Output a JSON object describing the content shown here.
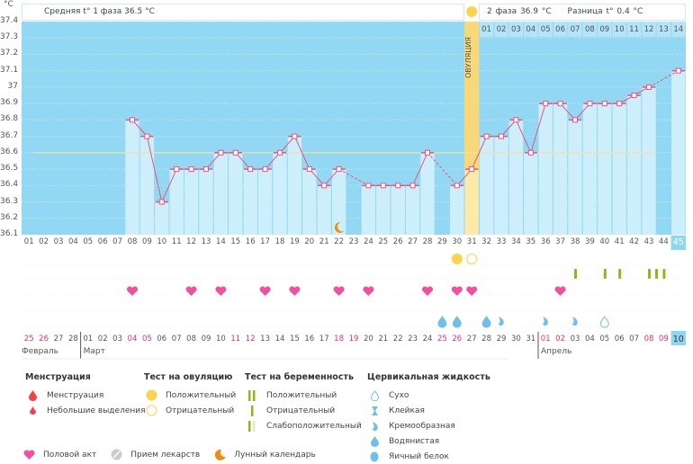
{
  "unit_label": "°C",
  "header": {
    "phase1": "Средняя t° 1 фаза 36.5 °C",
    "phase2": "2 фаза 36.9 °C",
    "difference": "Разница t° 0.4 °C",
    "ovulation_label": "ОВУЛЯЦИЯ"
  },
  "colors": {
    "plot_bg": "#92d7f3",
    "bar": "#cdeefb",
    "line": "#e8557a",
    "avg": "#f3e49a",
    "ovulation": "#fde9a8",
    "weekend": "#e8306a",
    "heart": "#f2509c",
    "preg": "#8cb81c",
    "fluid": "#6fbfe8",
    "sun": "#fcd34d",
    "moon": "#f08c10"
  },
  "chart_data": {
    "type": "line",
    "ylim": [
      36.1,
      37.4
    ],
    "y_ticks": [
      "36.1",
      "36.2",
      "36.3",
      "36.4",
      "36.5",
      "36.6",
      "36.7",
      "36.8",
      "36.9",
      "37",
      "37.1",
      "37.2",
      "37.3",
      "37.4"
    ],
    "cycle_days": [
      "01",
      "02",
      "03",
      "04",
      "05",
      "06",
      "07",
      "08",
      "09",
      "10",
      "11",
      "12",
      "13",
      "14",
      "15",
      "16",
      "17",
      "18",
      "19",
      "20",
      "21",
      "22",
      "23",
      "24",
      "25",
      "26",
      "27",
      "28",
      "29",
      "30",
      "31",
      "32",
      "33",
      "34",
      "35",
      "36",
      "37",
      "38",
      "39",
      "40",
      "41",
      "42",
      "43",
      "44",
      "45"
    ],
    "temperatures": [
      null,
      null,
      null,
      null,
      null,
      null,
      null,
      36.8,
      36.7,
      36.3,
      36.5,
      36.5,
      36.5,
      36.6,
      36.6,
      36.5,
      36.5,
      36.6,
      36.7,
      36.5,
      36.4,
      36.5,
      null,
      36.4,
      36.4,
      36.4,
      36.4,
      36.6,
      null,
      36.4,
      36.5,
      36.7,
      36.7,
      36.8,
      36.6,
      36.9,
      36.9,
      36.8,
      36.9,
      36.9,
      36.9,
      36.95,
      37.0,
      null,
      37.1
    ],
    "average_line": 36.6,
    "ovulation_day": 31,
    "moon_day": 22,
    "current_day": 45,
    "phase2_days": [
      "01",
      "02",
      "03",
      "04",
      "05",
      "06",
      "07",
      "08",
      "09",
      "10",
      "11",
      "12",
      "13",
      "14"
    ]
  },
  "ovulation_tests": [
    {
      "day": 30,
      "result": "positive"
    },
    {
      "day": 31,
      "result": "negative"
    }
  ],
  "pregnancy_tests": [
    38,
    40,
    41,
    43,
    43.5,
    44
  ],
  "intercourse_days": [
    8,
    12,
    14,
    17,
    19,
    22,
    24,
    28,
    30,
    31,
    37
  ],
  "fluids": [
    {
      "day": 29,
      "type": "watery"
    },
    {
      "day": 30,
      "type": "watery"
    },
    {
      "day": 32,
      "type": "watery"
    },
    {
      "day": 33,
      "type": "creamy"
    },
    {
      "day": 36,
      "type": "creamy"
    },
    {
      "day": 38,
      "type": "creamy"
    },
    {
      "day": 40,
      "type": "dry"
    }
  ],
  "dates": [
    "25",
    "26",
    "27",
    "28",
    "01",
    "02",
    "03",
    "04",
    "05",
    "06",
    "07",
    "08",
    "09",
    "10",
    "11",
    "12",
    "13",
    "14",
    "15",
    "16",
    "17",
    "18",
    "19",
    "20",
    "21",
    "22",
    "23",
    "24",
    "25",
    "26",
    "27",
    "28",
    "29",
    "30",
    "31",
    "01",
    "02",
    "03",
    "04",
    "05",
    "06",
    "07",
    "08",
    "09",
    "10"
  ],
  "weekend_idx": [
    0,
    1,
    7,
    8,
    14,
    15,
    21,
    22,
    28,
    29,
    35,
    36,
    42,
    43
  ],
  "months": [
    {
      "label": "Февраль",
      "idx": 0
    },
    {
      "label": "Март",
      "idx": 4
    },
    {
      "label": "Апрель",
      "idx": 35
    }
  ],
  "legend": {
    "menstruation": {
      "title": "Менструация",
      "items": [
        "Менструация",
        "Небольшие выделения"
      ]
    },
    "ovulation_test": {
      "title": "Тест на овуляцию",
      "items": [
        "Положительный",
        "Отрицательный"
      ]
    },
    "pregnancy_test": {
      "title": "Тест на беременность",
      "items": [
        "Положительный",
        "Отрицательный",
        "Слабоположительный"
      ]
    },
    "cervical": {
      "title": "Цервикальная жидкость",
      "items": [
        "Сухо",
        "Клейкая",
        "Кремообразная",
        "Водянистая",
        "Яичный белок"
      ]
    },
    "other": [
      "Половой акт",
      "Прием лекарств",
      "Лунный календарь"
    ]
  }
}
